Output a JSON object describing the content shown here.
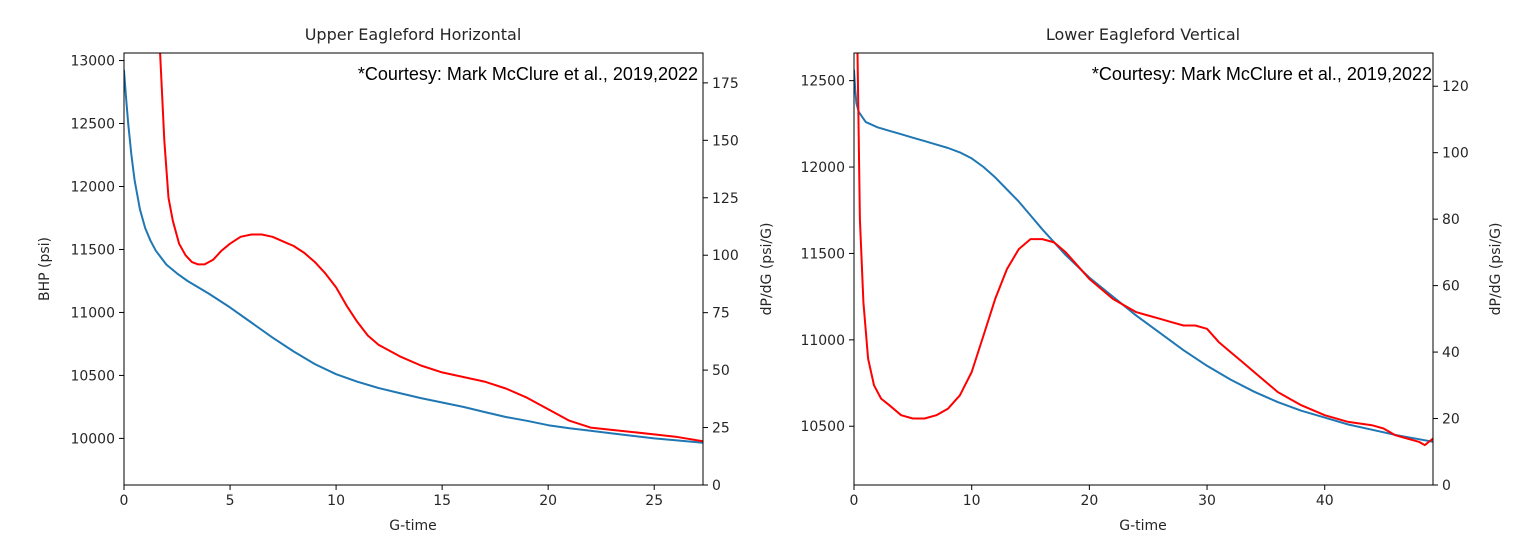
{
  "chart_data": [
    {
      "type": "line",
      "title": "Upper Eagleford Horizontal",
      "annotation": "*Courtesy: Mark McClure et al., 2019,2022",
      "xlabel": "G-time",
      "ylabel": "BHP (psi)",
      "y2label": "dP/dG (psi/G)",
      "xlim": [
        0,
        27.3
      ],
      "ylim": [
        9630,
        13060
      ],
      "y2lim": [
        0,
        188
      ],
      "xticks": [
        0,
        5,
        10,
        15,
        20,
        25
      ],
      "yticks": [
        10000,
        10500,
        11000,
        11500,
        12000,
        12500,
        13000
      ],
      "y2ticks": [
        0,
        25,
        50,
        75,
        100,
        125,
        150,
        175
      ],
      "grid": false,
      "series": [
        {
          "axis": "left",
          "color": "#1f77b4",
          "x": [
            0,
            0.1,
            0.2,
            0.35,
            0.5,
            0.75,
            1,
            1.25,
            1.5,
            2,
            2.5,
            3,
            4,
            5,
            6,
            7,
            8,
            9,
            10,
            11,
            12,
            13,
            14,
            15,
            16,
            17,
            18,
            19,
            20,
            21,
            22,
            23,
            24,
            25,
            26,
            27.3
          ],
          "y": [
            12920,
            12700,
            12500,
            12250,
            12050,
            11820,
            11670,
            11570,
            11490,
            11380,
            11310,
            11250,
            11150,
            11040,
            10920,
            10800,
            10690,
            10590,
            10510,
            10450,
            10400,
            10360,
            10320,
            10285,
            10250,
            10210,
            10170,
            10140,
            10105,
            10080,
            10060,
            10040,
            10020,
            10000,
            9985,
            9965
          ]
        },
        {
          "axis": "right",
          "color": "#ff0000",
          "x": [
            1.7,
            1.9,
            2.1,
            2.3,
            2.6,
            2.9,
            3.2,
            3.5,
            3.8,
            4.2,
            4.6,
            5,
            5.5,
            6,
            6.5,
            7,
            7.5,
            8,
            8.5,
            9,
            9.5,
            10,
            10.5,
            11,
            11.5,
            12,
            13,
            14,
            15,
            16,
            17,
            18,
            19,
            20,
            21,
            22,
            23,
            24,
            25,
            26,
            27.3
          ],
          "y": [
            188,
            150,
            125,
            115,
            105,
            100,
            97,
            96,
            96,
            98,
            102,
            105,
            108,
            109,
            109,
            108,
            106,
            104,
            101,
            97,
            92,
            86,
            78,
            71,
            65,
            61,
            56,
            52,
            49,
            47,
            45,
            42,
            38,
            33,
            28,
            25,
            24,
            23,
            22,
            21,
            19
          ]
        }
      ]
    },
    {
      "type": "line",
      "title": "Lower Eagleford Vertical",
      "annotation": "*Courtesy: Mark McClure et al., 2019,2022",
      "xlabel": "G-time",
      "ylabel": "",
      "y2label": "dP/dG (psi/G)",
      "xlim": [
        0,
        49.2
      ],
      "ylim": [
        10160,
        12660
      ],
      "y2lim": [
        0,
        130
      ],
      "xticks": [
        0,
        10,
        20,
        30,
        40
      ],
      "yticks": [
        10500,
        11000,
        11500,
        12000,
        12500
      ],
      "y2ticks": [
        0,
        20,
        40,
        60,
        80,
        100,
        120
      ],
      "grid": false,
      "series": [
        {
          "axis": "left",
          "color": "#1f77b4",
          "x": [
            0,
            0.1,
            0.2,
            0.4,
            0.7,
            1,
            2,
            3,
            4,
            5,
            6,
            7,
            8,
            9,
            10,
            11,
            12,
            13,
            14,
            15,
            16,
            18,
            20,
            22,
            24,
            26,
            28,
            30,
            32,
            34,
            36,
            38,
            40,
            42,
            44,
            46,
            48,
            49.2
          ],
          "y": [
            12560,
            12450,
            12370,
            12320,
            12290,
            12260,
            12230,
            12210,
            12190,
            12170,
            12150,
            12130,
            12110,
            12085,
            12050,
            12000,
            11940,
            11870,
            11800,
            11720,
            11640,
            11490,
            11360,
            11250,
            11140,
            11040,
            10940,
            10850,
            10770,
            10700,
            10640,
            10590,
            10550,
            10510,
            10480,
            10450,
            10425,
            10410
          ]
        },
        {
          "axis": "right",
          "color": "#ff0000",
          "x": [
            0.3,
            0.5,
            0.8,
            1.2,
            1.7,
            2.3,
            3,
            4,
            5,
            6,
            7,
            8,
            9,
            10,
            11,
            12,
            13,
            14,
            15,
            16,
            17,
            18,
            19,
            20,
            21,
            22,
            23,
            24,
            25,
            26,
            27,
            28,
            29,
            30,
            31,
            32,
            33,
            34,
            35,
            36,
            37,
            38,
            40,
            42,
            44,
            45,
            46,
            47,
            48,
            48.5,
            49.2
          ],
          "y": [
            130,
            80,
            55,
            38,
            30,
            26,
            24,
            21,
            20,
            20,
            21,
            23,
            27,
            34,
            45,
            56,
            65,
            71,
            74,
            74,
            73,
            70,
            66,
            62,
            59,
            56,
            54,
            52,
            51,
            50,
            49,
            48,
            48,
            47,
            43,
            40,
            37,
            34,
            31,
            28,
            26,
            24,
            21,
            19,
            18,
            17,
            15,
            14,
            13,
            12,
            14
          ]
        }
      ]
    }
  ]
}
